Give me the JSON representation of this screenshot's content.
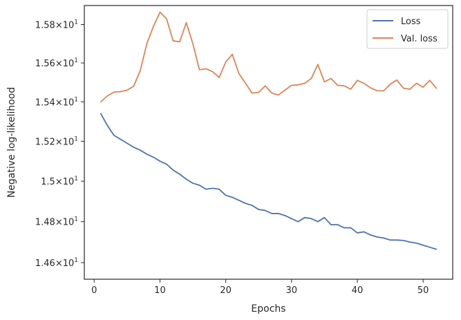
{
  "chart_data": {
    "type": "line",
    "title": "",
    "xlabel": "Epochs",
    "ylabel": "Negative log-likelihood",
    "xlim": [
      -1.5,
      54.5
    ],
    "ylim": [
      14.52,
      15.9
    ],
    "yscale": "log",
    "grid": false,
    "legend_position": "top-right",
    "xticks": [
      0,
      10,
      20,
      30,
      40,
      50
    ],
    "xtick_labels": [
      "0",
      "10",
      "20",
      "30",
      "40",
      "50"
    ],
    "yticks": [
      14.6,
      14.8,
      15.0,
      15.2,
      15.4,
      15.6,
      15.8
    ],
    "ytick_labels": [
      {
        "base": "1.46×10",
        "exp": "1"
      },
      {
        "base": "1.48×10",
        "exp": "1"
      },
      {
        "base": "1.5×10",
        "exp": "1"
      },
      {
        "base": "1.52×10",
        "exp": "1"
      },
      {
        "base": "1.54×10",
        "exp": "1"
      },
      {
        "base": "1.56×10",
        "exp": "1"
      },
      {
        "base": "1.58×10",
        "exp": "1"
      }
    ],
    "x": [
      1,
      2,
      3,
      4,
      5,
      6,
      7,
      8,
      9,
      10,
      11,
      12,
      13,
      14,
      15,
      16,
      17,
      18,
      19,
      20,
      21,
      22,
      23,
      24,
      25,
      26,
      27,
      28,
      29,
      30,
      31,
      32,
      33,
      34,
      35,
      36,
      37,
      38,
      39,
      40,
      41,
      42,
      43,
      44,
      45,
      46,
      47,
      48,
      49,
      50,
      51,
      52
    ],
    "series": [
      {
        "name": "Loss",
        "color": "#4c72b0",
        "values": [
          15.34,
          15.28,
          15.23,
          15.21,
          15.19,
          15.17,
          15.155,
          15.135,
          15.12,
          15.1,
          15.085,
          15.055,
          15.035,
          15.01,
          14.99,
          14.98,
          14.96,
          14.965,
          14.96,
          14.93,
          14.92,
          14.905,
          14.89,
          14.88,
          14.86,
          14.855,
          14.84,
          14.84,
          14.83,
          14.815,
          14.8,
          14.82,
          14.815,
          14.8,
          14.82,
          14.785,
          14.785,
          14.77,
          14.77,
          14.745,
          14.75,
          14.735,
          14.725,
          14.72,
          14.71,
          14.71,
          14.708,
          14.7,
          14.695,
          14.685,
          14.675,
          14.665
        ]
      },
      {
        "name": "Val. loss",
        "color": "#dd8452",
        "values": [
          15.4,
          15.43,
          15.45,
          15.452,
          15.46,
          15.48,
          15.56,
          15.7,
          15.79,
          15.865,
          15.83,
          15.715,
          15.71,
          15.81,
          15.7,
          15.565,
          15.57,
          15.555,
          15.525,
          15.605,
          15.645,
          15.545,
          15.495,
          15.445,
          15.448,
          15.482,
          15.445,
          15.435,
          15.46,
          15.485,
          15.487,
          15.495,
          15.52,
          15.592,
          15.502,
          15.52,
          15.485,
          15.482,
          15.465,
          15.51,
          15.495,
          15.472,
          15.457,
          15.456,
          15.49,
          15.512,
          15.47,
          15.465,
          15.495,
          15.475,
          15.51,
          15.47
        ]
      }
    ]
  }
}
